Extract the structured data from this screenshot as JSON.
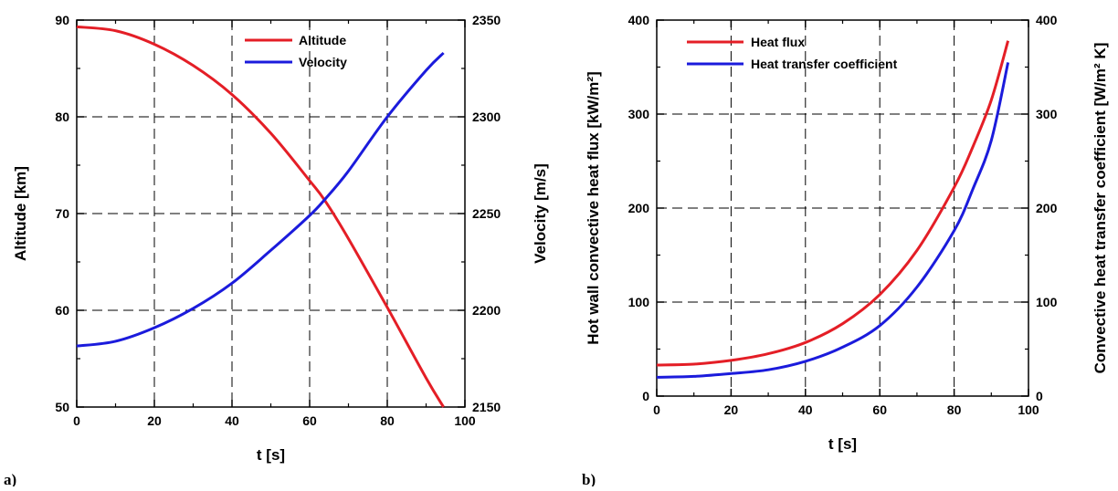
{
  "chart_data": [
    {
      "type": "line",
      "panel_label": "a)",
      "xlabel": "t [s]",
      "ylabel_left": "Altitude [km]",
      "ylabel_right": "Velocity [m/s]",
      "xlim": [
        0,
        100
      ],
      "ylim_left": [
        50,
        90
      ],
      "ylim_right": [
        2150,
        2350
      ],
      "xticks": [
        "0",
        "20",
        "40",
        "60",
        "80",
        "100"
      ],
      "yticks_left": [
        "50",
        "60",
        "70",
        "80",
        "90"
      ],
      "yticks_right": [
        "2150",
        "2200",
        "2250",
        "2300",
        "2350"
      ],
      "grid": true,
      "legend_position": "top-center",
      "series": [
        {
          "name": "Altitude",
          "axis": "left",
          "color": "#e41e26",
          "x": [
            0,
            10,
            20,
            30,
            40,
            50,
            60,
            64,
            70,
            80,
            90,
            94.5
          ],
          "y": [
            89.3,
            88.9,
            87.5,
            85.3,
            82.3,
            78.3,
            73.4,
            71.3,
            67.4,
            60.3,
            53.0,
            50.0
          ]
        },
        {
          "name": "Velocity",
          "axis": "right",
          "color": "#1b1bdc",
          "x": [
            0,
            10,
            20,
            30,
            40,
            50,
            60,
            64,
            70,
            80,
            90,
            94.5
          ],
          "y": [
            2181.5,
            2184,
            2191,
            2201,
            2214,
            2231,
            2249,
            2257.5,
            2272,
            2300,
            2324,
            2333
          ]
        }
      ]
    },
    {
      "type": "line",
      "panel_label": "b)",
      "xlabel": "t [s]",
      "ylabel_left": "Hot wall convective heat flux [kW/m²]",
      "ylabel_right": "Convective heat transfer coefficient [W/m² K]",
      "xlim": [
        0,
        100
      ],
      "ylim_left": [
        0,
        400
      ],
      "ylim_right": [
        0,
        400
      ],
      "xticks": [
        "0",
        "20",
        "40",
        "60",
        "80",
        "100"
      ],
      "yticks_left": [
        "0",
        "100",
        "200",
        "300",
        "400"
      ],
      "yticks_right": [
        "0",
        "100",
        "200",
        "300",
        "400"
      ],
      "grid": true,
      "legend_position": "top-left",
      "series": [
        {
          "name": "Heat flux",
          "axis": "left",
          "color": "#e41e26",
          "x": [
            0,
            10,
            20,
            30,
            40,
            50,
            60,
            70,
            80,
            85,
            90,
            94.5
          ],
          "y": [
            33,
            34,
            38,
            45,
            57,
            77,
            108,
            155,
            222,
            265,
            315,
            378
          ]
        },
        {
          "name": "Heat transfer coefficient",
          "axis": "right",
          "color": "#1b1bdc",
          "x": [
            0,
            10,
            20,
            30,
            40,
            50,
            60,
            70,
            80,
            85,
            90,
            94.5
          ],
          "y": [
            20,
            21,
            24,
            28,
            37,
            52,
            75,
            116,
            176,
            220,
            272,
            355
          ]
        }
      ]
    }
  ]
}
